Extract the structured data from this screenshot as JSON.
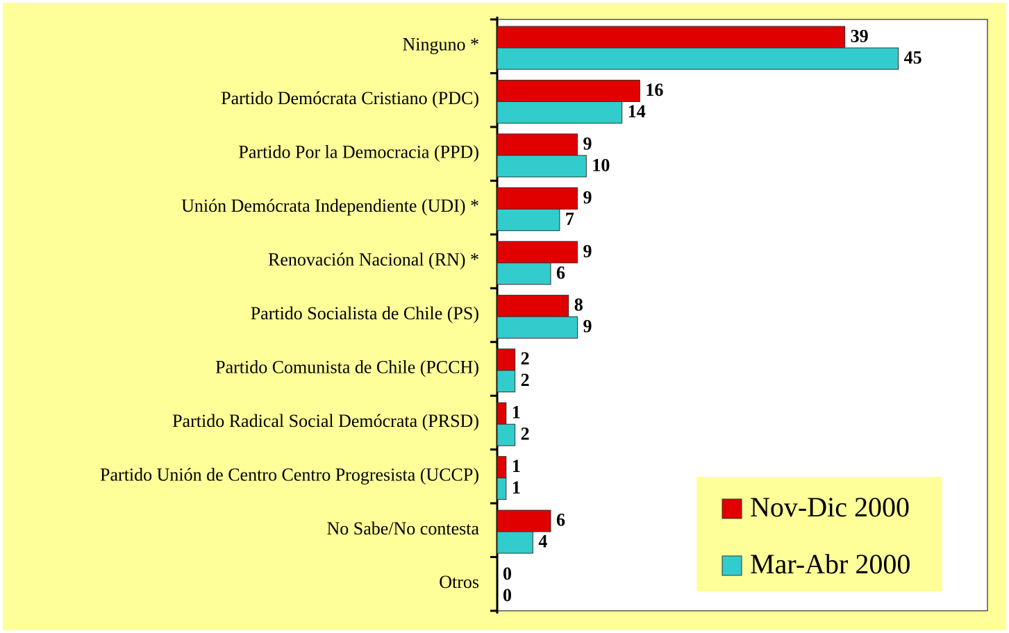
{
  "chart_data": {
    "type": "bar",
    "orientation": "horizontal",
    "categories": [
      "Ninguno *",
      "Partido Demócrata Cristiano (PDC)",
      "Partido Por la Democracia (PPD)",
      "Unión Demócrata Independiente (UDI) *",
      "Renovación Nacional (RN) *",
      "Partido Socialista de Chile (PS)",
      "Partido Comunista de Chile (PCCH)",
      "Partido Radical Social Demócrata (PRSD)",
      "Partido Unión de Centro Centro Progresista (UCCP)",
      "No Sabe/No contesta",
      "Otros"
    ],
    "series": [
      {
        "name": "Nov-Dic 2000",
        "color": "#e00000",
        "values": [
          39,
          16,
          9,
          9,
          9,
          8,
          2,
          1,
          1,
          6,
          0
        ]
      },
      {
        "name": "Mar-Abr 2000",
        "color": "#33cccc",
        "values": [
          45,
          14,
          10,
          7,
          6,
          9,
          2,
          2,
          1,
          4,
          0
        ]
      }
    ],
    "xlim": [
      0,
      55
    ],
    "legend": "lower-right"
  }
}
